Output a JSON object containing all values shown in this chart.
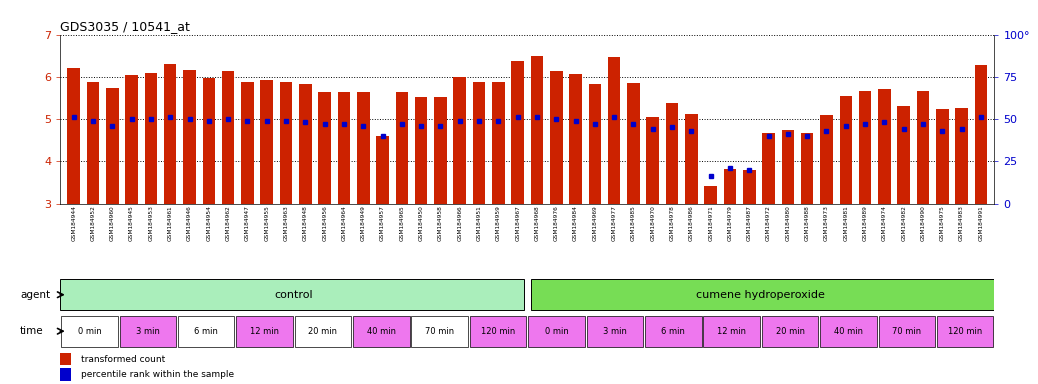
{
  "title": "GDS3035 / 10541_at",
  "sample_ids": [
    "GSM184944",
    "GSM184952",
    "GSM184960",
    "GSM184945",
    "GSM184953",
    "GSM184961",
    "GSM184946",
    "GSM184954",
    "GSM184962",
    "GSM184947",
    "GSM184955",
    "GSM184963",
    "GSM184948",
    "GSM184956",
    "GSM184964",
    "GSM184949",
    "GSM184957",
    "GSM184965",
    "GSM184950",
    "GSM184958",
    "GSM184966",
    "GSM184951",
    "GSM184959",
    "GSM184967",
    "GSM184968",
    "GSM184976",
    "GSM184984",
    "GSM184969",
    "GSM184977",
    "GSM184985",
    "GSM184970",
    "GSM184978",
    "GSM184986",
    "GSM184971",
    "GSM184979",
    "GSM184987",
    "GSM184972",
    "GSM184980",
    "GSM184988",
    "GSM184973",
    "GSM184981",
    "GSM184989",
    "GSM184974",
    "GSM184982",
    "GSM184990",
    "GSM184975",
    "GSM184983",
    "GSM184991"
  ],
  "bar_values": [
    6.22,
    5.88,
    5.73,
    6.05,
    6.08,
    6.31,
    6.17,
    5.97,
    6.14,
    5.88,
    5.93,
    5.88,
    5.83,
    5.65,
    5.65,
    5.63,
    4.6,
    5.65,
    5.53,
    5.52,
    6.0,
    5.88,
    5.88,
    6.38,
    6.5,
    6.14,
    6.07,
    5.82,
    6.47,
    5.85,
    5.05,
    5.37,
    5.11,
    3.42,
    3.82,
    3.8,
    4.68,
    4.74,
    4.67,
    5.1,
    5.55,
    5.67,
    5.72,
    5.31,
    5.67,
    5.24,
    5.26,
    6.28
  ],
  "percentile_values": [
    51,
    49,
    46,
    50,
    50,
    51,
    50,
    49,
    50,
    49,
    49,
    49,
    48,
    47,
    47,
    46,
    40,
    47,
    46,
    46,
    49,
    49,
    49,
    51,
    51,
    50,
    49,
    47,
    51,
    47,
    44,
    45,
    43,
    16,
    21,
    20,
    40,
    41,
    40,
    43,
    46,
    47,
    48,
    44,
    47,
    43,
    44,
    51
  ],
  "bar_baseline": 3.0,
  "ylim_left": [
    3,
    7
  ],
  "ylim_right": [
    0,
    100
  ],
  "yticks_left": [
    3,
    4,
    5,
    6,
    7
  ],
  "yticks_right": [
    0,
    25,
    50,
    75,
    100
  ],
  "bar_color": "#CC2200",
  "marker_color": "#0000CC",
  "background_color": "#FFFFFF",
  "control_label": "control",
  "treatment_label": "cumene hydroperoxide",
  "agent_label": "agent",
  "time_label": "time",
  "time_groups": [
    "0 min",
    "3 min",
    "6 min",
    "12 min",
    "20 min",
    "40 min",
    "70 min",
    "120 min",
    "0 min",
    "3 min",
    "6 min",
    "12 min",
    "20 min",
    "40 min",
    "70 min",
    "120 min"
  ],
  "time_group_sizes": [
    3,
    3,
    3,
    3,
    3,
    3,
    3,
    3,
    3,
    3,
    3,
    3,
    3,
    3,
    3,
    3
  ],
  "time_colors": [
    "#FFFFFF",
    "#EE77EE",
    "#FFFFFF",
    "#EE77EE",
    "#FFFFFF",
    "#EE77EE",
    "#FFFFFF",
    "#EE77EE",
    "#EE77EE",
    "#EE77EE",
    "#EE77EE",
    "#EE77EE",
    "#EE77EE",
    "#EE77EE",
    "#EE77EE",
    "#EE77EE"
  ],
  "control_bg": "#AAEEBB",
  "treatment_bg": "#77DD55",
  "xtick_bg": "#DDDDDD",
  "legend_red": "transformed count",
  "legend_blue": "percentile rank within the sample",
  "n_control": 24,
  "n_treatment": 24
}
